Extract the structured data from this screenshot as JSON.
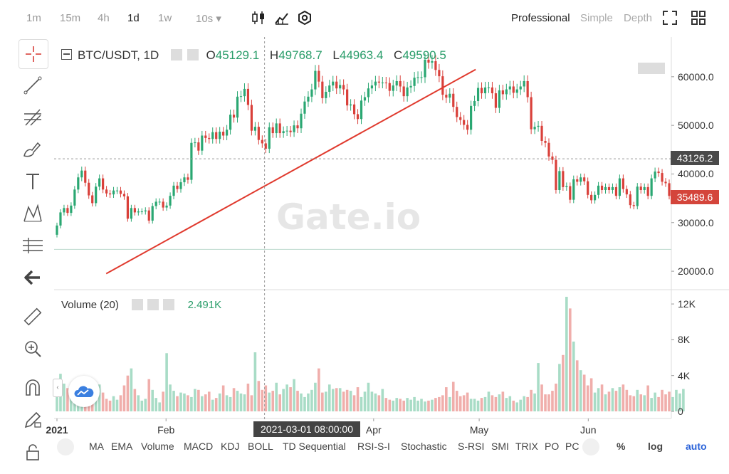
{
  "topbar": {
    "timeframes": [
      "1m",
      "15m",
      "4h",
      "1d",
      "1w",
      "10s ▾"
    ],
    "active_timeframe": "1d",
    "modes": [
      "Professional",
      "Simple",
      "Depth"
    ],
    "active_mode": "Professional"
  },
  "main_legend": {
    "symbol": "BTC/USDT, 1D",
    "o_label": "O",
    "o_value": "45129.1",
    "h_label": "H",
    "h_value": "49768.7",
    "l_label": "L",
    "l_value": "44963.4",
    "c_label": "C",
    "c_value": "49590.5"
  },
  "volume_legend": {
    "title": "Volume (20)",
    "value": "2.491K"
  },
  "price_badges": {
    "crosshair": "43126.2",
    "last": "35489.6"
  },
  "time_tooltip": "2021-03-01 08:00:00",
  "watermark": "Gate.io",
  "bottombar": {
    "indicators": [
      "MA",
      "EMA",
      "Volume",
      "MACD",
      "KDJ",
      "BOLL",
      "TD Sequential",
      "RSI-S-I",
      "Stochastic",
      "S-RSI",
      "SMI",
      "TRIX",
      "PO",
      "PC"
    ],
    "percent": "%",
    "log": "log",
    "auto": "auto"
  },
  "chart_data": [
    {
      "type": "candlestick",
      "title": "BTC/USDT, 1D",
      "y_ticks": [
        20000,
        30000,
        40000,
        50000,
        60000
      ],
      "y_tick_labels": [
        "20000.0",
        "30000.0",
        "40000.0",
        "50000.0",
        "60000.0"
      ],
      "ylim": [
        16500,
        67000
      ],
      "x_tick_labels": [
        "2021",
        "Feb",
        "Apr",
        "May",
        "Jun"
      ],
      "x_ticks": [
        "2021-01-01",
        "2021-02-01",
        "2021-04-01",
        "2021-05-01",
        "2021-06-01"
      ],
      "trendline": [
        [
          "2021-01-15",
          19500
        ],
        [
          "2021-04-30",
          61500
        ]
      ],
      "crosshair": {
        "x": "2021-03-01",
        "y": 43126.2
      },
      "reference_line": 24500,
      "colors": {
        "up": "#2aa772",
        "down": "#d9403a",
        "trend": "#e03a2e"
      },
      "candle_close": [
        [
          29400,
          27500
        ],
        [
          32100,
          29400
        ],
        [
          33000,
          32100
        ],
        [
          32000,
          33000
        ],
        [
          33500,
          32000
        ],
        [
          36800,
          33500
        ],
        [
          39300,
          36800
        ],
        [
          40700,
          39300
        ],
        [
          38200,
          40700
        ],
        [
          35600,
          38200
        ],
        [
          34000,
          35600
        ],
        [
          37400,
          34000
        ],
        [
          39100,
          37400
        ],
        [
          36800,
          39100
        ],
        [
          36000,
          36800
        ],
        [
          35800,
          36000
        ],
        [
          36600,
          35800
        ],
        [
          36600,
          36600
        ],
        [
          35900,
          36600
        ],
        [
          35400,
          35900
        ],
        [
          30800,
          35400
        ],
        [
          33000,
          30800
        ],
        [
          32100,
          33000
        ],
        [
          32300,
          32100
        ],
        [
          32300,
          32300
        ],
        [
          32500,
          32300
        ],
        [
          30400,
          32500
        ],
        [
          33400,
          30400
        ],
        [
          34300,
          33400
        ],
        [
          34300,
          34300
        ],
        [
          33100,
          34300
        ],
        [
          33500,
          33100
        ],
        [
          35500,
          33500
        ],
        [
          37600,
          35500
        ],
        [
          36900,
          37600
        ],
        [
          38300,
          36900
        ],
        [
          39300,
          38300
        ],
        [
          38800,
          39300
        ],
        [
          46400,
          38800
        ],
        [
          46500,
          46400
        ],
        [
          44800,
          46500
        ],
        [
          47900,
          44800
        ],
        [
          47400,
          47900
        ],
        [
          47200,
          47400
        ],
        [
          48600,
          47200
        ],
        [
          47200,
          48600
        ],
        [
          48700,
          47200
        ],
        [
          47900,
          48700
        ],
        [
          49100,
          47900
        ],
        [
          52200,
          49100
        ],
        [
          51600,
          52200
        ],
        [
          55900,
          51600
        ],
        [
          56000,
          55900
        ],
        [
          57500,
          56000
        ],
        [
          54200,
          57500
        ],
        [
          48900,
          54200
        ],
        [
          49700,
          48900
        ],
        [
          47000,
          49700
        ],
        [
          46300,
          47000
        ],
        [
          45200,
          46300
        ],
        [
          49600,
          45200
        ],
        [
          48400,
          49600
        ],
        [
          50400,
          48400
        ],
        [
          48400,
          50400
        ],
        [
          48800,
          48400
        ],
        [
          48900,
          48800
        ],
        [
          48600,
          48900
        ],
        [
          50000,
          48600
        ],
        [
          49400,
          50000
        ],
        [
          52400,
          49400
        ],
        [
          54900,
          52400
        ],
        [
          55900,
          54900
        ],
        [
          57400,
          55900
        ],
        [
          61200,
          57400
        ],
        [
          59000,
          61200
        ],
        [
          55600,
          59000
        ],
        [
          56900,
          55600
        ],
        [
          58200,
          56900
        ],
        [
          59000,
          58200
        ],
        [
          57600,
          59000
        ],
        [
          58300,
          57600
        ],
        [
          57400,
          58300
        ],
        [
          54100,
          57400
        ],
        [
          54300,
          54100
        ],
        [
          52300,
          54300
        ],
        [
          51300,
          52300
        ],
        [
          55100,
          51300
        ],
        [
          55800,
          55100
        ],
        [
          57600,
          55800
        ],
        [
          58200,
          57600
        ],
        [
          59000,
          58200
        ],
        [
          58800,
          59000
        ],
        [
          58800,
          58800
        ],
        [
          58700,
          58800
        ],
        [
          57100,
          58700
        ],
        [
          58200,
          57100
        ],
        [
          59100,
          58200
        ],
        [
          58000,
          59100
        ],
        [
          56000,
          58000
        ],
        [
          57800,
          56000
        ],
        [
          58100,
          57800
        ],
        [
          59800,
          58100
        ],
        [
          59900,
          59800
        ],
        [
          59900,
          59900
        ],
        [
          63500,
          59900
        ],
        [
          62900,
          63500
        ],
        [
          63200,
          62900
        ],
        [
          61400,
          63200
        ],
        [
          60100,
          61400
        ],
        [
          56300,
          60100
        ],
        [
          55700,
          56300
        ],
        [
          56500,
          55700
        ],
        [
          53800,
          56500
        ],
        [
          51700,
          53800
        ],
        [
          51100,
          51700
        ],
        [
          50100,
          51100
        ],
        [
          49100,
          50100
        ],
        [
          54000,
          49100
        ],
        [
          55000,
          54000
        ],
        [
          57700,
          55000
        ],
        [
          56600,
          57700
        ],
        [
          57800,
          56600
        ],
        [
          57800,
          57800
        ],
        [
          56600,
          57800
        ],
        [
          53600,
          56600
        ],
        [
          57200,
          53600
        ],
        [
          56400,
          57200
        ],
        [
          57400,
          56400
        ],
        [
          58000,
          57400
        ],
        [
          56700,
          58000
        ],
        [
          57400,
          56700
        ],
        [
          58000,
          57400
        ],
        [
          59100,
          58000
        ],
        [
          55800,
          59100
        ],
        [
          49200,
          55800
        ],
        [
          49700,
          49200
        ],
        [
          49900,
          49700
        ],
        [
          46800,
          49900
        ],
        [
          46400,
          46800
        ],
        [
          43600,
          46400
        ],
        [
          42900,
          43600
        ],
        [
          36700,
          42900
        ],
        [
          40600,
          36700
        ],
        [
          37300,
          40600
        ],
        [
          37500,
          37300
        ],
        [
          34700,
          37500
        ],
        [
          38900,
          34700
        ],
        [
          38400,
          38900
        ],
        [
          39300,
          38400
        ],
        [
          38500,
          39300
        ],
        [
          35700,
          38500
        ],
        [
          34600,
          35700
        ],
        [
          35700,
          34600
        ],
        [
          37600,
          35700
        ],
        [
          36700,
          37600
        ],
        [
          37300,
          36700
        ],
        [
          36700,
          37300
        ],
        [
          37300,
          36700
        ],
        [
          35500,
          37300
        ],
        [
          39100,
          35500
        ],
        [
          36900,
          39100
        ],
        [
          35800,
          36900
        ],
        [
          33600,
          35800
        ],
        [
          33400,
          33600
        ],
        [
          37400,
          33400
        ],
        [
          36700,
          37400
        ],
        [
          37300,
          36700
        ],
        [
          35500,
          37300
        ],
        [
          39100,
          35500
        ],
        [
          40500,
          39100
        ],
        [
          40200,
          40500
        ],
        [
          38400,
          40200
        ],
        [
          38100,
          38400
        ],
        [
          35489.6,
          38100
        ]
      ],
      "volume_k": [
        2.4,
        4.2,
        3.1,
        2.6,
        2.8,
        3.5,
        2.2,
        1.9,
        1.6,
        1.5,
        2.0,
        2.3,
        3.0,
        2.1,
        1.4,
        1.2,
        1.7,
        1.3,
        1.8,
        2.9,
        4.0,
        4.8,
        2.5,
        1.8,
        1.2,
        1.4,
        3.6,
        2.4,
        1.5,
        1.0,
        2.2,
        6.5,
        3.0,
        2.3,
        1.7,
        2.1,
        2.0,
        1.8,
        1.6,
        2.5,
        2.4,
        1.7,
        1.9,
        2.2,
        1.3,
        1.5,
        2.0,
        2.9,
        1.8,
        1.6,
        2.6,
        2.3,
        2.0,
        1.9,
        3.1,
        1.8,
        6.6,
        3.4,
        2.4,
        2.9,
        2.1,
        2.3,
        3.2,
        1.9,
        2.5,
        3.0,
        2.7,
        3.6,
        2.3,
        2.0,
        1.6,
        2.0,
        2.4,
        3.2,
        4.8,
        2.1,
        2.2,
        3.0,
        2.5,
        2.6,
        2.6,
        2.2,
        2.4,
        2.3,
        1.8,
        2.7,
        1.6,
        2.2,
        3.2,
        2.2,
        2.0,
        1.8,
        2.5,
        1.5,
        1.3,
        1.2,
        1.5,
        1.4,
        1.2,
        1.5,
        1.3,
        1.6,
        1.2,
        1.4,
        1.1,
        1.2,
        1.3,
        1.5,
        1.6,
        1.8,
        2.7,
        1.6,
        3.3,
        2.3,
        1.7,
        1.8,
        2.1,
        1.4,
        1.4,
        1.2,
        1.5,
        1.6,
        2.2,
        1.8,
        1.6,
        1.9,
        2.2,
        1.5,
        1.7,
        1.2,
        1.0,
        1.3,
        1.7,
        1.6,
        2.4,
        2.0,
        5.4,
        3.0,
        1.9,
        1.9,
        2.3,
        3.1,
        5.3,
        6.3,
        12.8,
        11.5,
        7.8,
        5.7,
        4.6,
        4.1,
        2.9,
        3.7,
        2.1,
        2.6,
        3.0,
        1.9,
        2.2,
        2.6,
        2.3,
        2.7,
        3.0,
        2.4,
        1.8,
        1.7,
        2.4,
        1.9,
        1.8,
        2.9,
        1.5,
        2.1,
        1.6,
        2.4,
        1.9,
        2.2,
        1.6,
        2.4,
        2.0,
        2.5
      ]
    }
  ]
}
